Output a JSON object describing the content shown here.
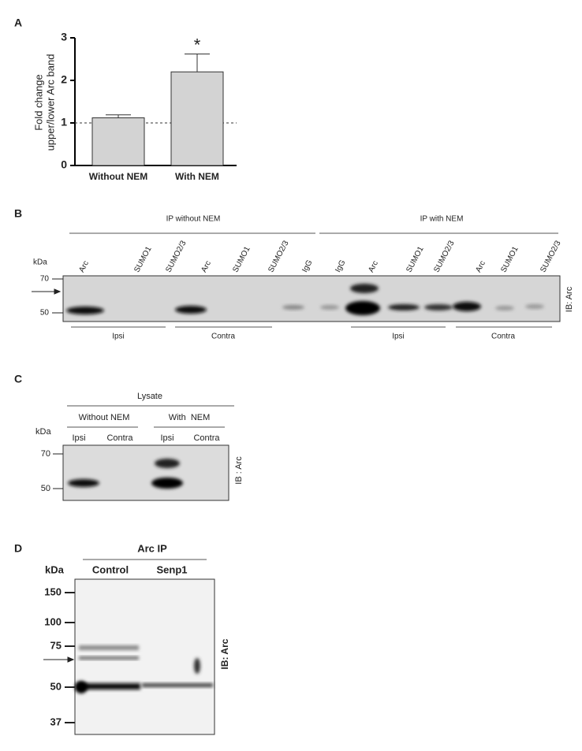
{
  "panel_labels": [
    "A",
    "B",
    "C",
    "D"
  ],
  "chart_data": {
    "type": "bar",
    "ylabel": [
      "Fold change",
      "upper/lower Arc band"
    ],
    "categories": [
      "Without NEM",
      "With NEM"
    ],
    "values": [
      1.12,
      2.2
    ],
    "errors": [
      0.07,
      0.42
    ],
    "color": "#d3d3d3",
    "ylim": [
      0,
      3
    ],
    "yticks": [
      0,
      1,
      2,
      3
    ],
    "reference_line": 1,
    "annotations": [
      {
        "text": "*",
        "x": "With NEM"
      }
    ]
  },
  "panel_b": {
    "group_labels": [
      "IP without NEM",
      "IP with NEM"
    ],
    "lane_labels": [
      "Arc",
      "SUMO1",
      "SUMO2/3",
      "Arc",
      "SUMO1",
      "SUMO2/3",
      "IgG",
      "IgG",
      "Arc",
      "SUMO1",
      "SUMO2/3",
      "Arc",
      "SUMO1",
      "SUMO2/3"
    ],
    "kda_label": "kDa",
    "markers": [
      "70",
      "50"
    ],
    "tissue_labels": [
      "Ipsi",
      "Contra",
      "Ipsi",
      "Contra"
    ],
    "ib_label": "IB: Arc"
  },
  "panel_c": {
    "title": "Lysate",
    "group_labels": [
      "Without NEM",
      "With  NEM"
    ],
    "lane_labels": [
      "Ipsi",
      "Contra",
      "Ipsi",
      "Contra"
    ],
    "kda_label": "kDa",
    "markers": [
      "70",
      "50"
    ],
    "ib_label": "IB : Arc"
  },
  "panel_d": {
    "title": "Arc IP",
    "lane_labels": [
      "Control",
      "Senp1"
    ],
    "kda_label": "kDa",
    "markers": [
      "150",
      "100",
      "75",
      "50",
      "37"
    ],
    "ib_label": "IB: Arc"
  }
}
